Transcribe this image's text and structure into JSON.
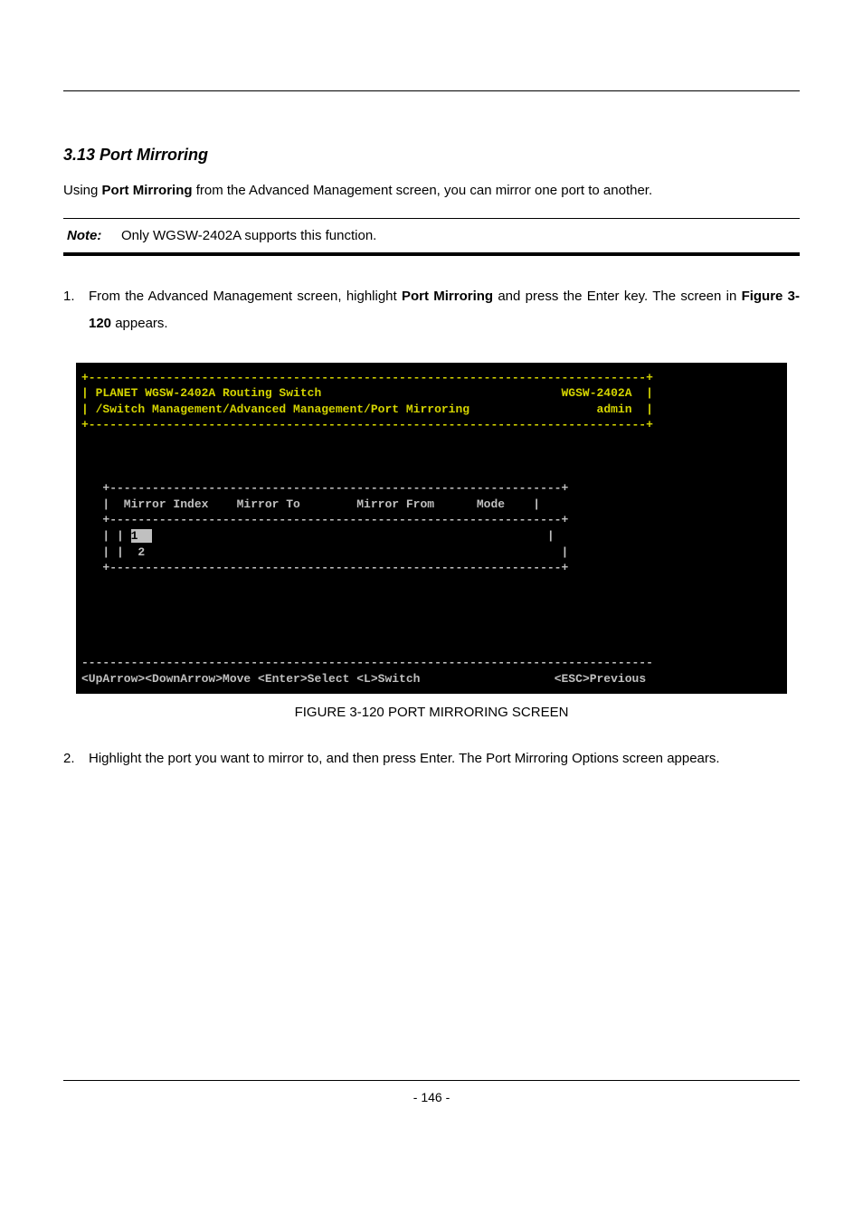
{
  "section": {
    "heading": "3.13 Port Mirroring",
    "intro_prefix": "Using ",
    "intro_bold": "Port Mirroring",
    "intro_suffix": " from the Advanced Management screen, you can mirror one port to another."
  },
  "note": {
    "label": "Note:",
    "text": "Only WGSW-2402A supports this function."
  },
  "step1": {
    "num": "1.",
    "pre": "From the Advanced Management screen, highlight ",
    "bold1": "Port Mirroring",
    "mid1": " and press the Enter key. The screen in ",
    "bold2": "Figure 3-120",
    "post": " appears."
  },
  "terminal": {
    "border_top": "+-------------------------------------------------------------------------------+",
    "hdr1_left": "| PLANET WGSW-2402A Routing Switch",
    "hdr1_right": "WGSW-2402A  |",
    "hdr2_left": "| /Switch Management/Advanced Management/Port Mirroring",
    "hdr2_right": "admin  |",
    "border_mid": "+-------------------------------------------------------------------------------+",
    "blank": "",
    "table_top": "   +----------------------------------------------------------------+",
    "table_hdr": "   |  Mirror Index    Mirror To        Mirror From      Mode    |",
    "table_hdr_sep": "   +----------------------------------------------------------------+",
    "row1_pre": "   | | ",
    "row1_val": "1  ",
    "row1_post": "                                                        |",
    "row2": "   | |  2                                                           |",
    "table_bot": "   +----------------------------------------------------------------+",
    "footer_border": "---------------------------------------------------------------------------------",
    "footer_left": "<UpArrow><DownArrow>Move <Enter>Select <L>Switch",
    "footer_right": "<ESC>Previous"
  },
  "caption": "FIGURE 3-120    PORT MIRRORING SCREEN",
  "step2": {
    "num": "2.",
    "text": "Highlight the port you want to mirror to, and then press Enter. The Port Mirroring Options screen appears."
  },
  "page_number": "- 146 -"
}
